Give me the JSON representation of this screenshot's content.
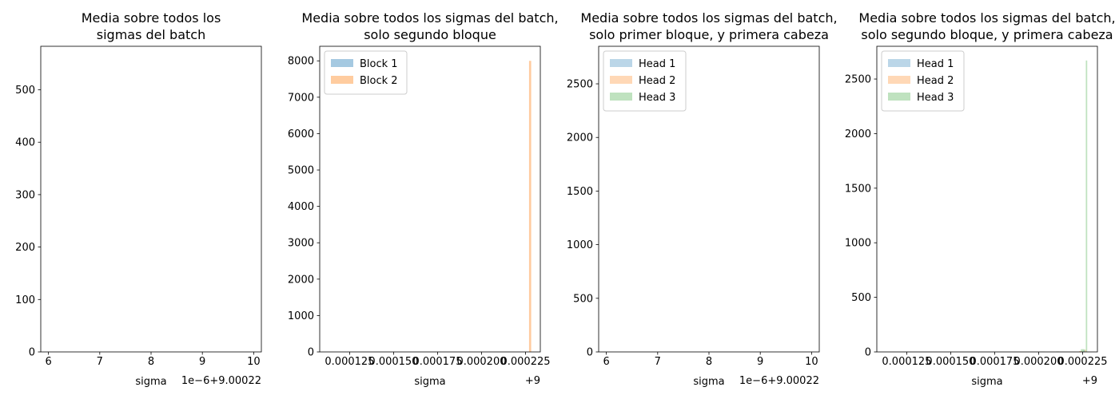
{
  "chart_data": [
    {
      "type": "bar",
      "title": "Media sobre todos los\nsigmas del batch",
      "xlabel": "sigma",
      "ylabel": "",
      "offset_text": "1e−6+9.00022",
      "xlim": [
        5.85,
        10.15
      ],
      "ylim": [
        0,
        583
      ],
      "xticks": [
        6,
        7,
        8,
        9,
        10
      ],
      "xtick_labels": [
        "6",
        "7",
        "8",
        "9",
        "10"
      ],
      "yticks": [
        0,
        100,
        200,
        300,
        400,
        500
      ],
      "ytick_labels": [
        "0",
        "100",
        "200",
        "300",
        "400",
        "500"
      ],
      "legend": null,
      "series": []
    },
    {
      "type": "bar",
      "title": "Media sobre todos los sigmas del batch,\nsolo segundo bloque",
      "xlabel": "sigma",
      "ylabel": "",
      "offset_text": "+9",
      "xlim": [
        0.000108,
        0.0002334
      ],
      "ylim": [
        0,
        8400
      ],
      "xticks": [
        0.000125,
        0.00015,
        0.000175,
        0.0002,
        0.000225
      ],
      "xtick_labels": [
        "0.000125",
        "0.000150",
        "0.000175",
        "0.000200",
        "0.000225"
      ],
      "yticks": [
        0,
        1000,
        2000,
        3000,
        4000,
        5000,
        6000,
        7000,
        8000
      ],
      "ytick_labels": [
        "0",
        "1000",
        "2000",
        "3000",
        "4000",
        "5000",
        "6000",
        "7000",
        "8000"
      ],
      "legend": "upper left",
      "series": [
        {
          "name": "Block 1",
          "color": "#1f77b4",
          "alpha": 0.4,
          "bins": []
        },
        {
          "name": "Block 2",
          "color": "#ff7f0e",
          "alpha": 0.4,
          "bins": [
            {
              "x0": 0.000227,
              "x1": 0.0002282,
              "value": 8000
            }
          ]
        }
      ]
    },
    {
      "type": "bar",
      "title": "Media sobre todos los sigmas del batch,\nsolo primer bloque, y primera cabeza",
      "xlabel": "sigma",
      "ylabel": "",
      "offset_text": "1e−6+9.00022",
      "xlim": [
        5.85,
        10.15
      ],
      "ylim": [
        0,
        2850
      ],
      "xticks": [
        6,
        7,
        8,
        9,
        10
      ],
      "xtick_labels": [
        "6",
        "7",
        "8",
        "9",
        "10"
      ],
      "yticks": [
        0,
        500,
        1000,
        1500,
        2000,
        2500
      ],
      "ytick_labels": [
        "0",
        "500",
        "1000",
        "1500",
        "2000",
        "2500"
      ],
      "legend": "upper left",
      "series": [
        {
          "name": "Head 1",
          "color": "#1f77b4",
          "alpha": 0.3,
          "bins": []
        },
        {
          "name": "Head 2",
          "color": "#ff7f0e",
          "alpha": 0.3,
          "bins": []
        },
        {
          "name": "Head 3",
          "color": "#2ca02c",
          "alpha": 0.3,
          "bins": []
        }
      ]
    },
    {
      "type": "bar",
      "title": "Media sobre todos los sigmas del batch,\nsolo segundo bloque, y primera cabeza",
      "xlabel": "sigma",
      "ylabel": "",
      "offset_text": "+9",
      "xlim": [
        0.000108,
        0.0002334
      ],
      "ylim": [
        0,
        2800
      ],
      "xticks": [
        0.000125,
        0.00015,
        0.000175,
        0.0002,
        0.000225
      ],
      "xtick_labels": [
        "0.000125",
        "0.000150",
        "0.000175",
        "0.000200",
        "0.000225"
      ],
      "yticks": [
        0,
        500,
        1000,
        1500,
        2000,
        2500
      ],
      "ytick_labels": [
        "0",
        "500",
        "1000",
        "1500",
        "2000",
        "2500"
      ],
      "legend": "upper left",
      "series": [
        {
          "name": "Head 1",
          "color": "#1f77b4",
          "alpha": 0.3,
          "bins": [
            {
              "x0": 0.0002255,
              "x1": 0.0002262,
              "value": 15
            }
          ]
        },
        {
          "name": "Head 2",
          "color": "#ff7f0e",
          "alpha": 0.3,
          "bins": [
            {
              "x0": 0.000223,
              "x1": 0.0002245,
              "value": 8
            },
            {
              "x0": 0.0002262,
              "x1": 0.000227,
              "value": 20
            }
          ]
        },
        {
          "name": "Head 3",
          "color": "#2ca02c",
          "alpha": 0.3,
          "bins": [
            {
              "x0": 0.000201,
              "x1": 0.0002035,
              "value": 3
            },
            {
              "x0": 0.00021,
              "x1": 0.0002115,
              "value": 4
            },
            {
              "x0": 0.000224,
              "x1": 0.0002262,
              "value": 25
            },
            {
              "x0": 0.0002268,
              "x1": 0.0002276,
              "value": 2670
            }
          ]
        }
      ]
    }
  ]
}
